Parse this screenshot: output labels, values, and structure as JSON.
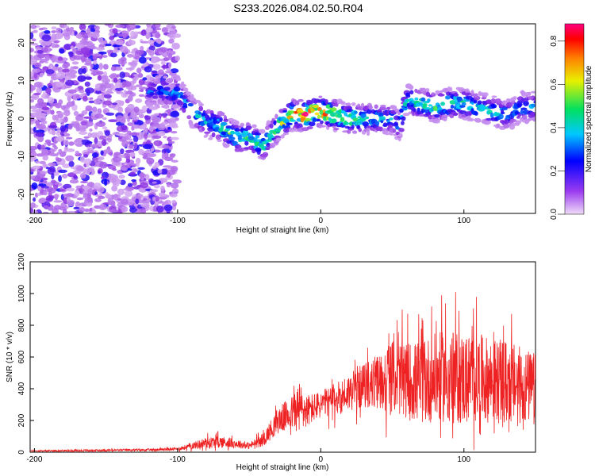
{
  "title": "S233.2026.084.02.50.R04",
  "chart_data": [
    {
      "type": "heatmap",
      "name": "spectrogram",
      "xlabel": "Height of straight line (km)",
      "ylabel": "Frequency (Hz)",
      "xlim": [
        -203,
        150
      ],
      "ylim": [
        -25,
        25
      ],
      "xticks": [
        -200,
        -100,
        0,
        100
      ],
      "yticks": [
        -20,
        -10,
        0,
        10,
        20
      ],
      "colorbar": {
        "label": "Normalized spectral amplitude",
        "range": [
          0,
          0.88
        ],
        "ticks": [
          0.0,
          0.2,
          0.4,
          0.6,
          0.8
        ],
        "colormap": [
          "#e9ccf6",
          "#8a2be2",
          "#0000ff",
          "#00c8ff",
          "#00e060",
          "#f0f000",
          "#ff8000",
          "#ff0000",
          "#ff007f"
        ]
      },
      "ridge": {
        "x": [
          -120,
          -100,
          -90,
          -80,
          -70,
          -60,
          -50,
          -40,
          -30,
          -20,
          -10,
          0,
          10,
          20,
          30,
          40,
          50,
          55,
          60,
          70,
          80,
          90,
          100,
          110,
          120,
          130,
          140,
          150
        ],
        "freq": [
          7,
          7,
          2,
          -1,
          -2,
          -5,
          -5,
          -7,
          -2,
          1,
          1,
          2,
          1,
          0,
          0,
          0,
          0,
          -2,
          5,
          4,
          3,
          4,
          4,
          3,
          2,
          1,
          3,
          3
        ],
        "amplitude": [
          0.25,
          0.3,
          0.3,
          0.35,
          0.4,
          0.45,
          0.45,
          0.45,
          0.45,
          0.6,
          0.8,
          0.7,
          0.6,
          0.5,
          0.4,
          0.35,
          0.3,
          0.3,
          0.35,
          0.45,
          0.4,
          0.45,
          0.4,
          0.35,
          0.35,
          0.3,
          0.3,
          0.3
        ]
      },
      "noise_region": [
        -203,
        -100
      ]
    },
    {
      "type": "line",
      "name": "snr",
      "xlabel": "Height of straight line (km)",
      "ylabel": "SNR (10 * v/v)",
      "xlim": [
        -203,
        150
      ],
      "ylim": [
        0,
        1200
      ],
      "xticks": [
        -200,
        -100,
        0,
        100
      ],
      "yticks": [
        0,
        200,
        400,
        600,
        800,
        1000,
        1200
      ],
      "color": "#ee2222",
      "envelope": {
        "x": [
          -203,
          -150,
          -120,
          -100,
          -90,
          -80,
          -70,
          -60,
          -50,
          -40,
          -30,
          -20,
          -15,
          -10,
          0,
          10,
          20,
          30,
          40,
          50,
          60,
          70,
          80,
          90,
          100,
          110,
          120,
          130,
          140,
          150
        ],
        "mean": [
          8,
          12,
          15,
          20,
          40,
          60,
          65,
          55,
          40,
          80,
          200,
          250,
          280,
          260,
          300,
          330,
          380,
          420,
          440,
          480,
          450,
          440,
          470,
          480,
          460,
          470,
          450,
          440,
          420,
          400
        ],
        "amp": [
          6,
          10,
          10,
          15,
          30,
          50,
          55,
          40,
          30,
          60,
          120,
          150,
          250,
          150,
          120,
          150,
          170,
          200,
          250,
          320,
          350,
          380,
          400,
          420,
          420,
          400,
          380,
          380,
          350,
          320
        ]
      }
    }
  ]
}
